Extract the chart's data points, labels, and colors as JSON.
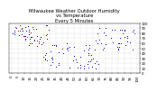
{
  "title": "Milwaukee Weather Outdoor Humidity\nvs Temperature\nEvery 5 Minutes",
  "background_color": "#ffffff",
  "dot_color_main": "#0000cc",
  "dot_color_highlight": "#cc0000",
  "xlim": [
    -2,
    102
  ],
  "ylim": [
    0,
    100
  ],
  "title_fontsize": 3.8,
  "tick_fontsize": 2.8,
  "grid_color": "#bbbbbb",
  "x_tick_spacing": 5,
  "y_tick_spacing": 10,
  "y_axis_side": "right"
}
